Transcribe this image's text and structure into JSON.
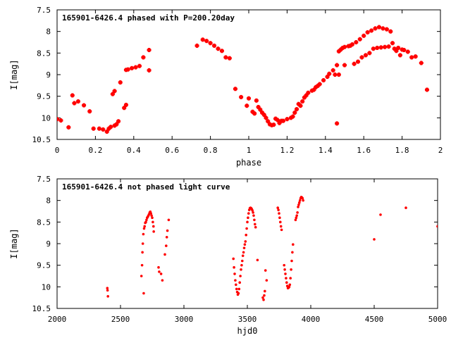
{
  "chart_data": [
    {
      "type": "scatter",
      "title": "165901-6426.4 phased with P=200.20day",
      "xlabel": "phase",
      "ylabel": "I[mag]",
      "xlim": [
        0,
        2
      ],
      "ylim": [
        10.5,
        7.5
      ],
      "y_inverted": true,
      "xticks": [
        "0",
        "0.2",
        "0.4",
        "0.6",
        "0.8",
        "1",
        "1.2",
        "1.4",
        "1.6",
        "1.8",
        "2"
      ],
      "yticks": [
        "7.5",
        "8",
        "8.5",
        "9",
        "9.5",
        "10",
        "10.5"
      ],
      "grid": false,
      "marker_color": "#ff0000",
      "series": [
        {
          "points": [
            [
              0.0,
              10.03
            ],
            [
              0.02,
              10.06
            ],
            [
              0.06,
              10.22
            ],
            [
              0.08,
              9.48
            ],
            [
              0.09,
              9.66
            ],
            [
              0.11,
              9.62
            ],
            [
              0.14,
              9.71
            ],
            [
              0.17,
              9.85
            ],
            [
              0.19,
              10.25
            ],
            [
              0.22,
              10.25
            ],
            [
              0.24,
              10.27
            ],
            [
              0.26,
              10.32
            ],
            [
              0.27,
              10.25
            ],
            [
              0.28,
              10.21
            ],
            [
              0.29,
              9.45
            ],
            [
              0.3,
              9.38
            ],
            [
              0.3,
              10.18
            ],
            [
              0.31,
              10.15
            ],
            [
              0.32,
              10.08
            ],
            [
              0.33,
              9.18
            ],
            [
              0.35,
              9.77
            ],
            [
              0.36,
              9.7
            ],
            [
              0.36,
              8.89
            ],
            [
              0.37,
              8.88
            ],
            [
              0.39,
              8.85
            ],
            [
              0.41,
              8.83
            ],
            [
              0.43,
              8.8
            ],
            [
              0.45,
              8.6
            ],
            [
              0.48,
              8.9
            ],
            [
              0.48,
              8.43
            ],
            [
              0.73,
              8.33
            ],
            [
              0.76,
              8.19
            ],
            [
              0.78,
              8.22
            ],
            [
              0.8,
              8.27
            ],
            [
              0.82,
              8.33
            ],
            [
              0.84,
              8.4
            ],
            [
              0.86,
              8.45
            ],
            [
              0.88,
              8.6
            ],
            [
              0.9,
              8.62
            ],
            [
              0.93,
              9.33
            ],
            [
              0.96,
              9.52
            ],
            [
              0.99,
              9.72
            ],
            [
              1.0,
              9.55
            ],
            [
              1.02,
              9.86
            ],
            [
              1.03,
              9.9
            ],
            [
              1.04,
              9.6
            ],
            [
              1.05,
              9.75
            ],
            [
              1.06,
              9.81
            ],
            [
              1.07,
              9.88
            ],
            [
              1.08,
              9.93
            ],
            [
              1.09,
              10.0
            ],
            [
              1.1,
              10.08
            ],
            [
              1.11,
              10.15
            ],
            [
              1.12,
              10.17
            ],
            [
              1.13,
              10.16
            ],
            [
              1.14,
              10.02
            ],
            [
              1.15,
              10.05
            ],
            [
              1.16,
              10.12
            ],
            [
              1.17,
              10.07
            ],
            [
              1.18,
              10.07
            ],
            [
              1.2,
              10.03
            ],
            [
              1.22,
              10.0
            ],
            [
              1.23,
              9.97
            ],
            [
              1.24,
              9.88
            ],
            [
              1.25,
              9.8
            ],
            [
              1.26,
              9.68
            ],
            [
              1.27,
              9.72
            ],
            [
              1.28,
              9.62
            ],
            [
              1.29,
              9.53
            ],
            [
              1.3,
              9.48
            ],
            [
              1.31,
              9.42
            ],
            [
              1.33,
              9.37
            ],
            [
              1.34,
              9.35
            ],
            [
              1.35,
              9.29
            ],
            [
              1.36,
              9.26
            ],
            [
              1.37,
              9.22
            ],
            [
              1.39,
              9.13
            ],
            [
              1.41,
              9.05
            ],
            [
              1.42,
              8.98
            ],
            [
              1.44,
              8.9
            ],
            [
              1.45,
              9.0
            ],
            [
              1.46,
              10.13
            ],
            [
              1.46,
              8.78
            ],
            [
              1.47,
              8.46
            ],
            [
              1.47,
              9.0
            ],
            [
              1.48,
              8.42
            ],
            [
              1.49,
              8.38
            ],
            [
              1.5,
              8.36
            ],
            [
              1.5,
              8.78
            ],
            [
              1.52,
              8.34
            ],
            [
              1.53,
              8.33
            ],
            [
              1.54,
              8.3
            ],
            [
              1.55,
              8.75
            ],
            [
              1.56,
              8.25
            ],
            [
              1.57,
              8.7
            ],
            [
              1.58,
              8.18
            ],
            [
              1.59,
              8.6
            ],
            [
              1.6,
              8.1
            ],
            [
              1.61,
              8.55
            ],
            [
              1.62,
              8.02
            ],
            [
              1.63,
              8.5
            ],
            [
              1.64,
              7.98
            ],
            [
              1.65,
              8.4
            ],
            [
              1.66,
              7.93
            ],
            [
              1.67,
              8.38
            ],
            [
              1.68,
              7.9
            ],
            [
              1.69,
              8.37
            ],
            [
              1.7,
              7.93
            ],
            [
              1.71,
              8.36
            ],
            [
              1.72,
              7.95
            ],
            [
              1.73,
              8.35
            ],
            [
              1.74,
              8.0
            ],
            [
              1.75,
              8.27
            ],
            [
              1.76,
              8.4
            ],
            [
              1.77,
              8.45
            ],
            [
              1.78,
              8.38
            ],
            [
              1.79,
              8.55
            ],
            [
              1.8,
              8.42
            ],
            [
              1.81,
              8.43
            ],
            [
              1.83,
              8.47
            ],
            [
              1.85,
              8.6
            ],
            [
              1.87,
              8.58
            ],
            [
              1.9,
              8.73
            ],
            [
              1.93,
              9.35
            ]
          ]
        }
      ]
    },
    {
      "type": "scatter",
      "title": "165901-6426.4 not phased light curve",
      "xlabel": "hjd0",
      "ylabel": "I[mag]",
      "xlim": [
        2000,
        5000
      ],
      "ylim": [
        10.5,
        7.5
      ],
      "y_inverted": true,
      "xticks": [
        "2000",
        "2500",
        "3000",
        "3500",
        "4000",
        "4500",
        "5000"
      ],
      "yticks": [
        "7.5",
        "8",
        "8.5",
        "9",
        "9.5",
        "10",
        "10.5"
      ],
      "grid": false,
      "marker_color": "#ff0000",
      "series": [
        {
          "points": [
            [
              2396,
              10.03
            ],
            [
              2398,
              10.08
            ],
            [
              2401,
              10.22
            ],
            [
              2665,
              9.75
            ],
            [
              2670,
              9.5
            ],
            [
              2673,
              9.2
            ],
            [
              2676,
              9.0
            ],
            [
              2680,
              8.78
            ],
            [
              2683,
              10.15
            ],
            [
              2686,
              8.65
            ],
            [
              2690,
              8.6
            ],
            [
              2695,
              8.52
            ],
            [
              2700,
              8.5
            ],
            [
              2705,
              8.45
            ],
            [
              2710,
              8.4
            ],
            [
              2715,
              8.38
            ],
            [
              2720,
              8.35
            ],
            [
              2725,
              8.32
            ],
            [
              2730,
              8.28
            ],
            [
              2735,
              8.26
            ],
            [
              2740,
              8.3
            ],
            [
              2745,
              8.35
            ],
            [
              2750,
              8.4
            ],
            [
              2755,
              8.5
            ],
            [
              2760,
              8.6
            ],
            [
              2762,
              8.72
            ],
            [
              2800,
              9.55
            ],
            [
              2805,
              9.65
            ],
            [
              2820,
              9.7
            ],
            [
              2830,
              9.85
            ],
            [
              2850,
              9.25
            ],
            [
              2860,
              9.05
            ],
            [
              2865,
              8.85
            ],
            [
              2870,
              8.7
            ],
            [
              2880,
              8.45
            ],
            [
              3390,
              9.35
            ],
            [
              3395,
              9.55
            ],
            [
              3400,
              9.7
            ],
            [
              3405,
              9.85
            ],
            [
              3410,
              9.95
            ],
            [
              3415,
              10.05
            ],
            [
              3420,
              10.12
            ],
            [
              3425,
              10.18
            ],
            [
              3430,
              10.15
            ],
            [
              3435,
              10.05
            ],
            [
              3440,
              9.9
            ],
            [
              3445,
              9.75
            ],
            [
              3450,
              9.6
            ],
            [
              3455,
              9.5
            ],
            [
              3460,
              9.4
            ],
            [
              3465,
              9.28
            ],
            [
              3470,
              9.2
            ],
            [
              3475,
              9.1
            ],
            [
              3480,
              9.02
            ],
            [
              3485,
              8.95
            ],
            [
              3490,
              8.8
            ],
            [
              3495,
              8.65
            ],
            [
              3500,
              8.5
            ],
            [
              3505,
              8.4
            ],
            [
              3510,
              8.3
            ],
            [
              3515,
              8.22
            ],
            [
              3520,
              8.18
            ],
            [
              3525,
              8.17
            ],
            [
              3530,
              8.18
            ],
            [
              3535,
              8.2
            ],
            [
              3540,
              8.23
            ],
            [
              3545,
              8.28
            ],
            [
              3550,
              8.35
            ],
            [
              3555,
              8.45
            ],
            [
              3560,
              8.55
            ],
            [
              3565,
              8.62
            ],
            [
              3580,
              9.38
            ],
            [
              3622,
              10.25
            ],
            [
              3628,
              10.3
            ],
            [
              3633,
              10.2
            ],
            [
              3638,
              10.1
            ],
            [
              3643,
              9.62
            ],
            [
              3652,
              9.85
            ],
            [
              3740,
              8.17
            ],
            [
              3745,
              8.22
            ],
            [
              3750,
              8.3
            ],
            [
              3755,
              8.4
            ],
            [
              3760,
              8.5
            ],
            [
              3765,
              8.6
            ],
            [
              3770,
              8.68
            ],
            [
              3790,
              9.5
            ],
            [
              3795,
              9.6
            ],
            [
              3800,
              9.7
            ],
            [
              3805,
              9.8
            ],
            [
              3810,
              9.9
            ],
            [
              3815,
              9.98
            ],
            [
              3820,
              10.03
            ],
            [
              3825,
              10.02
            ],
            [
              3830,
              10.0
            ],
            [
              3835,
              9.95
            ],
            [
              3840,
              9.8
            ],
            [
              3845,
              9.6
            ],
            [
              3850,
              9.4
            ],
            [
              3855,
              9.2
            ],
            [
              3860,
              9.02
            ],
            [
              3880,
              8.45
            ],
            [
              3885,
              8.4
            ],
            [
              3890,
              8.35
            ],
            [
              3895,
              8.28
            ],
            [
              3900,
              8.15
            ],
            [
              3905,
              8.1
            ],
            [
              3910,
              8.05
            ],
            [
              3915,
              8.0
            ],
            [
              3920,
              7.95
            ],
            [
              3925,
              7.92
            ],
            [
              3930,
              7.93
            ],
            [
              3935,
              7.95
            ],
            [
              3940,
              8.0
            ],
            [
              4500,
              8.9
            ],
            [
              4550,
              8.33
            ],
            [
              4750,
              8.17
            ],
            [
              5000,
              8.6
            ]
          ]
        }
      ]
    }
  ]
}
